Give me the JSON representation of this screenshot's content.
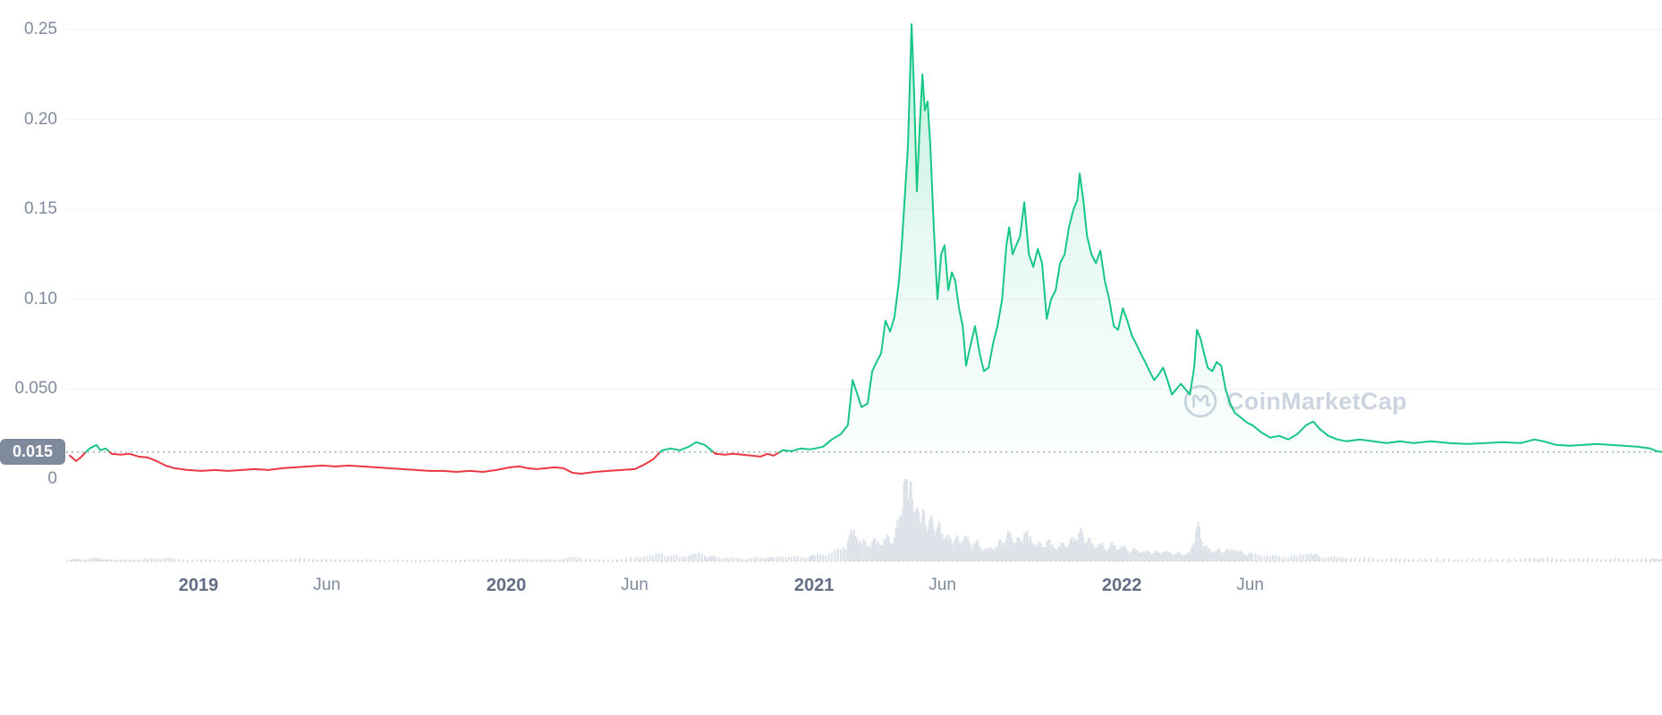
{
  "watermark": {
    "text": "CoinMarketCap"
  },
  "colors": {
    "up": "#16c784",
    "down": "#ea3943",
    "grid": "#eff2f5",
    "volume": "#cdd3de",
    "dotted": "#c6cdd8",
    "dotted_dark": "#9ba4b4",
    "axis_text": "#808a9d",
    "axis_text_strong": "#616e85",
    "badge_bg": "#808a9d",
    "badge_text": "#ffffff",
    "watermark": "#ccd4e0",
    "background": "#ffffff"
  },
  "chart_data": {
    "type": "line",
    "title": "",
    "xlabel": "",
    "ylabel": "",
    "legend": "none",
    "grid": "horizontal",
    "x_unit": "decimal_year",
    "x_range": [
      2018.355,
      2023.755
    ],
    "ylim": [
      0,
      0.26
    ],
    "y_ticks": [
      {
        "value": 0.25,
        "label": "0.25"
      },
      {
        "value": 0.2,
        "label": "0.20"
      },
      {
        "value": 0.15,
        "label": "0.15"
      },
      {
        "value": 0.1,
        "label": "0.10"
      },
      {
        "value": 0.05,
        "label": "0.050"
      },
      {
        "value": 0,
        "label": "0"
      }
    ],
    "x_ticks": [
      {
        "value": 2019.0,
        "label": "2019",
        "bold": true
      },
      {
        "value": 2019.417,
        "label": "Jun",
        "bold": false
      },
      {
        "value": 2020.0,
        "label": "2020",
        "bold": true
      },
      {
        "value": 2020.417,
        "label": "Jun",
        "bold": false
      },
      {
        "value": 2021.0,
        "label": "2021",
        "bold": true
      },
      {
        "value": 2021.417,
        "label": "Jun",
        "bold": false
      },
      {
        "value": 2022.0,
        "label": "2022",
        "bold": true
      },
      {
        "value": 2022.417,
        "label": "Jun",
        "bold": false
      }
    ],
    "threshold": {
      "value": 0.015,
      "label": "0.015"
    },
    "points_format": [
      "time_decimal_year",
      "price_usd",
      "volume_relative_0_1"
    ],
    "points": [
      [
        2018.582,
        0.013,
        0.02
      ],
      [
        2018.602,
        0.01,
        0.03
      ],
      [
        2018.617,
        0.012,
        0.02
      ],
      [
        2018.646,
        0.017,
        0.03
      ],
      [
        2018.669,
        0.019,
        0.04
      ],
      [
        2018.681,
        0.016,
        0.03
      ],
      [
        2018.698,
        0.017,
        0.02
      ],
      [
        2018.718,
        0.014,
        0.02
      ],
      [
        2018.747,
        0.0135,
        0.02
      ],
      [
        2018.776,
        0.014,
        0.02
      ],
      [
        2018.806,
        0.0125,
        0.02
      ],
      [
        2018.835,
        0.012,
        0.03
      ],
      [
        2018.864,
        0.01,
        0.03
      ],
      [
        2018.893,
        0.0075,
        0.04
      ],
      [
        2018.922,
        0.006,
        0.03
      ],
      [
        2018.965,
        0.005,
        0.02
      ],
      [
        2019.009,
        0.0045,
        0.02
      ],
      [
        2019.053,
        0.005,
        0.015
      ],
      [
        2019.096,
        0.0045,
        0.015
      ],
      [
        2019.14,
        0.005,
        0.02
      ],
      [
        2019.183,
        0.0055,
        0.02
      ],
      [
        2019.227,
        0.005,
        0.02
      ],
      [
        2019.271,
        0.006,
        0.02
      ],
      [
        2019.314,
        0.0065,
        0.03
      ],
      [
        2019.358,
        0.007,
        0.03
      ],
      [
        2019.401,
        0.0075,
        0.03
      ],
      [
        2019.445,
        0.007,
        0.02
      ],
      [
        2019.489,
        0.0075,
        0.02
      ],
      [
        2019.532,
        0.007,
        0.02
      ],
      [
        2019.576,
        0.0065,
        0.02
      ],
      [
        2019.619,
        0.006,
        0.015
      ],
      [
        2019.663,
        0.0055,
        0.015
      ],
      [
        2019.706,
        0.005,
        0.015
      ],
      [
        2019.75,
        0.0045,
        0.015
      ],
      [
        2019.794,
        0.0045,
        0.015
      ],
      [
        2019.837,
        0.004,
        0.015
      ],
      [
        2019.881,
        0.0045,
        0.02
      ],
      [
        2019.924,
        0.004,
        0.02
      ],
      [
        2019.968,
        0.005,
        0.02
      ],
      [
        2020.012,
        0.0065,
        0.03
      ],
      [
        2020.041,
        0.007,
        0.03
      ],
      [
        2020.07,
        0.006,
        0.02
      ],
      [
        2020.099,
        0.0055,
        0.02
      ],
      [
        2020.128,
        0.006,
        0.025
      ],
      [
        2020.157,
        0.0065,
        0.02
      ],
      [
        2020.186,
        0.006,
        0.03
      ],
      [
        2020.215,
        0.0035,
        0.05
      ],
      [
        2020.244,
        0.003,
        0.04
      ],
      [
        2020.288,
        0.004,
        0.02
      ],
      [
        2020.331,
        0.0045,
        0.02
      ],
      [
        2020.375,
        0.005,
        0.03
      ],
      [
        2020.418,
        0.0055,
        0.04
      ],
      [
        2020.448,
        0.008,
        0.06
      ],
      [
        2020.477,
        0.011,
        0.07
      ],
      [
        2020.506,
        0.016,
        0.09
      ],
      [
        2020.535,
        0.017,
        0.07
      ],
      [
        2020.564,
        0.016,
        0.05
      ],
      [
        2020.593,
        0.018,
        0.07
      ],
      [
        2020.616,
        0.0205,
        0.09
      ],
      [
        2020.645,
        0.019,
        0.07
      ],
      [
        2020.666,
        0.016,
        0.06
      ],
      [
        2020.68,
        0.014,
        0.05
      ],
      [
        2020.709,
        0.0135,
        0.04
      ],
      [
        2020.738,
        0.014,
        0.04
      ],
      [
        2020.767,
        0.0135,
        0.03
      ],
      [
        2020.796,
        0.013,
        0.04
      ],
      [
        2020.825,
        0.0125,
        0.04
      ],
      [
        2020.849,
        0.014,
        0.05
      ],
      [
        2020.869,
        0.013,
        0.04
      ],
      [
        2020.898,
        0.016,
        0.06
      ],
      [
        2020.927,
        0.0155,
        0.05
      ],
      [
        2020.956,
        0.017,
        0.05
      ],
      [
        2020.985,
        0.0165,
        0.06
      ],
      [
        2021.003,
        0.017,
        0.07
      ],
      [
        2021.029,
        0.018,
        0.08
      ],
      [
        2021.058,
        0.022,
        0.1
      ],
      [
        2021.087,
        0.025,
        0.14
      ],
      [
        2021.11,
        0.03,
        0.25
      ],
      [
        2021.125,
        0.055,
        0.33
      ],
      [
        2021.139,
        0.048,
        0.28
      ],
      [
        2021.154,
        0.04,
        0.22
      ],
      [
        2021.174,
        0.042,
        0.18
      ],
      [
        2021.189,
        0.06,
        0.24
      ],
      [
        2021.203,
        0.065,
        0.21
      ],
      [
        2021.218,
        0.07,
        0.19
      ],
      [
        2021.232,
        0.088,
        0.27
      ],
      [
        2021.247,
        0.082,
        0.23
      ],
      [
        2021.261,
        0.09,
        0.29
      ],
      [
        2021.276,
        0.11,
        0.44
      ],
      [
        2021.285,
        0.13,
        0.55
      ],
      [
        2021.296,
        0.16,
        1.0
      ],
      [
        2021.305,
        0.185,
        0.75
      ],
      [
        2021.311,
        0.22,
        0.85
      ],
      [
        2021.317,
        0.253,
        0.7
      ],
      [
        2021.325,
        0.215,
        0.6
      ],
      [
        2021.334,
        0.16,
        0.52
      ],
      [
        2021.343,
        0.195,
        0.48
      ],
      [
        2021.352,
        0.225,
        0.56
      ],
      [
        2021.36,
        0.205,
        0.42
      ],
      [
        2021.369,
        0.21,
        0.36
      ],
      [
        2021.378,
        0.185,
        0.46
      ],
      [
        2021.389,
        0.14,
        0.38
      ],
      [
        2021.401,
        0.1,
        0.42
      ],
      [
        2021.413,
        0.125,
        0.32
      ],
      [
        2021.424,
        0.13,
        0.28
      ],
      [
        2021.436,
        0.105,
        0.26
      ],
      [
        2021.448,
        0.115,
        0.22
      ],
      [
        2021.459,
        0.11,
        0.27
      ],
      [
        2021.471,
        0.095,
        0.21
      ],
      [
        2021.483,
        0.085,
        0.24
      ],
      [
        2021.494,
        0.063,
        0.26
      ],
      [
        2021.509,
        0.075,
        0.19
      ],
      [
        2021.523,
        0.085,
        0.22
      ],
      [
        2021.538,
        0.07,
        0.17
      ],
      [
        2021.552,
        0.06,
        0.14
      ],
      [
        2021.567,
        0.062,
        0.13
      ],
      [
        2021.581,
        0.075,
        0.15
      ],
      [
        2021.596,
        0.085,
        0.18
      ],
      [
        2021.611,
        0.1,
        0.22
      ],
      [
        2021.625,
        0.13,
        0.27
      ],
      [
        2021.634,
        0.14,
        0.31
      ],
      [
        2021.645,
        0.125,
        0.24
      ],
      [
        2021.657,
        0.13,
        0.21
      ],
      [
        2021.669,
        0.135,
        0.24
      ],
      [
        2021.683,
        0.154,
        0.33
      ],
      [
        2021.698,
        0.125,
        0.27
      ],
      [
        2021.712,
        0.118,
        0.21
      ],
      [
        2021.727,
        0.128,
        0.19
      ],
      [
        2021.741,
        0.12,
        0.17
      ],
      [
        2021.756,
        0.089,
        0.24
      ],
      [
        2021.77,
        0.1,
        0.19
      ],
      [
        2021.785,
        0.105,
        0.15
      ],
      [
        2021.799,
        0.12,
        0.17
      ],
      [
        2021.814,
        0.125,
        0.19
      ],
      [
        2021.828,
        0.14,
        0.21
      ],
      [
        2021.843,
        0.15,
        0.24
      ],
      [
        2021.855,
        0.155,
        0.26
      ],
      [
        2021.863,
        0.17,
        0.33
      ],
      [
        2021.875,
        0.155,
        0.28
      ],
      [
        2021.887,
        0.135,
        0.24
      ],
      [
        2021.901,
        0.125,
        0.21
      ],
      [
        2021.916,
        0.12,
        0.17
      ],
      [
        2021.93,
        0.127,
        0.19
      ],
      [
        2021.945,
        0.11,
        0.15
      ],
      [
        2021.959,
        0.1,
        0.17
      ],
      [
        2021.974,
        0.085,
        0.19
      ],
      [
        2021.988,
        0.083,
        0.14
      ],
      [
        2022.003,
        0.095,
        0.17
      ],
      [
        2022.018,
        0.088,
        0.13
      ],
      [
        2022.032,
        0.08,
        0.12
      ],
      [
        2022.047,
        0.075,
        0.13
      ],
      [
        2022.061,
        0.07,
        0.11
      ],
      [
        2022.076,
        0.065,
        0.1
      ],
      [
        2022.09,
        0.06,
        0.11
      ],
      [
        2022.105,
        0.055,
        0.1
      ],
      [
        2022.119,
        0.058,
        0.1
      ],
      [
        2022.134,
        0.062,
        0.11
      ],
      [
        2022.148,
        0.055,
        0.1
      ],
      [
        2022.163,
        0.047,
        0.09
      ],
      [
        2022.177,
        0.05,
        0.09
      ],
      [
        2022.192,
        0.053,
        0.08
      ],
      [
        2022.206,
        0.05,
        0.08
      ],
      [
        2022.221,
        0.047,
        0.09
      ],
      [
        2022.235,
        0.062,
        0.22
      ],
      [
        2022.244,
        0.083,
        0.42
      ],
      [
        2022.256,
        0.078,
        0.28
      ],
      [
        2022.267,
        0.07,
        0.18
      ],
      [
        2022.279,
        0.062,
        0.14
      ],
      [
        2022.294,
        0.06,
        0.11
      ],
      [
        2022.308,
        0.065,
        0.13
      ],
      [
        2022.323,
        0.063,
        0.11
      ],
      [
        2022.337,
        0.05,
        0.13
      ],
      [
        2022.352,
        0.042,
        0.11
      ],
      [
        2022.366,
        0.037,
        0.14
      ],
      [
        2022.381,
        0.035,
        0.11
      ],
      [
        2022.395,
        0.033,
        0.09
      ],
      [
        2022.41,
        0.031,
        0.08
      ],
      [
        2022.424,
        0.03,
        0.09
      ],
      [
        2022.453,
        0.026,
        0.07
      ],
      [
        2022.482,
        0.023,
        0.06
      ],
      [
        2022.511,
        0.024,
        0.06
      ],
      [
        2022.541,
        0.022,
        0.05
      ],
      [
        2022.57,
        0.025,
        0.07
      ],
      [
        2022.599,
        0.03,
        0.09
      ],
      [
        2022.622,
        0.032,
        0.08
      ],
      [
        2022.642,
        0.028,
        0.06
      ],
      [
        2022.671,
        0.024,
        0.05
      ],
      [
        2022.7,
        0.022,
        0.05
      ],
      [
        2022.729,
        0.021,
        0.04
      ],
      [
        2022.773,
        0.022,
        0.04
      ],
      [
        2022.817,
        0.021,
        0.04
      ],
      [
        2022.86,
        0.02,
        0.03
      ],
      [
        2022.904,
        0.021,
        0.03
      ],
      [
        2022.947,
        0.02,
        0.03
      ],
      [
        2023.005,
        0.021,
        0.03
      ],
      [
        2023.064,
        0.02,
        0.03
      ],
      [
        2023.122,
        0.0195,
        0.03
      ],
      [
        2023.18,
        0.02,
        0.03
      ],
      [
        2023.238,
        0.0205,
        0.03
      ],
      [
        2023.296,
        0.02,
        0.03
      ],
      [
        2023.34,
        0.022,
        0.04
      ],
      [
        2023.369,
        0.021,
        0.04
      ],
      [
        2023.412,
        0.019,
        0.03
      ],
      [
        2023.456,
        0.0185,
        0.03
      ],
      [
        2023.499,
        0.019,
        0.03
      ],
      [
        2023.543,
        0.0195,
        0.03
      ],
      [
        2023.587,
        0.019,
        0.03
      ],
      [
        2023.63,
        0.0185,
        0.03
      ],
      [
        2023.674,
        0.018,
        0.03
      ],
      [
        2023.717,
        0.017,
        0.03
      ],
      [
        2023.738,
        0.0155,
        0.03
      ],
      [
        2023.755,
        0.015,
        0.03
      ]
    ]
  }
}
